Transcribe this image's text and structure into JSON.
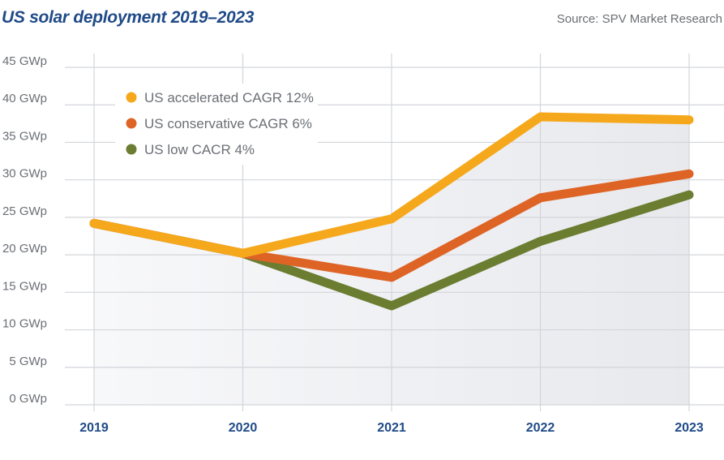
{
  "header": {
    "title": "US solar deployment 2019–2023",
    "source": "Source: SPV Market Research"
  },
  "chart_data": {
    "type": "line",
    "title": "US solar deployment 2019–2023",
    "xlabel": "",
    "ylabel": "",
    "x": [
      "2019",
      "2020",
      "2021",
      "2022",
      "2023"
    ],
    "yticks": [
      "0 GWp",
      "5 GWp",
      "10 GWp",
      "15 GWp",
      "20 GWp",
      "25 GWp",
      "30 GWp",
      "35 GWp",
      "40 GWp",
      "45 GWp"
    ],
    "ylim": [
      0,
      45
    ],
    "grid": true,
    "legend_position": "top-left",
    "series": [
      {
        "name": "US accelerated CAGR 12%",
        "color": "#f5a81c",
        "values": [
          24.2,
          20.2,
          24.8,
          38.4,
          38.0
        ]
      },
      {
        "name": "US conservative CAGR 6%",
        "color": "#de6426",
        "values": [
          24.2,
          20.2,
          17.0,
          27.6,
          30.8
        ]
      },
      {
        "name": "US low CACR 4%",
        "color": "#6b7d31",
        "values": [
          24.2,
          20.2,
          13.2,
          21.8,
          28.0
        ]
      }
    ]
  }
}
